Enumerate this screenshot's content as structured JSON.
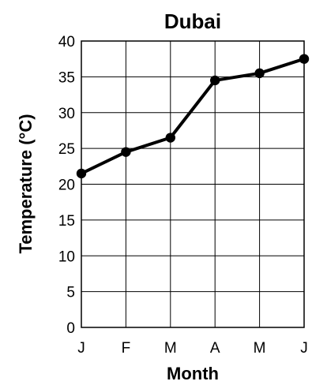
{
  "chart_data": {
    "type": "line",
    "title": "Dubai",
    "xlabel": "Month",
    "ylabel": "Temperature (°C)",
    "categories": [
      "J",
      "F",
      "M",
      "A",
      "M",
      "J"
    ],
    "y_ticks": [
      0,
      5,
      10,
      15,
      20,
      25,
      30,
      35,
      40
    ],
    "ylim": [
      0,
      40
    ],
    "grid": true,
    "series": [
      {
        "values": [
          21.5,
          24.5,
          26.5,
          34.5,
          35.5,
          37.5
        ]
      }
    ],
    "colors": {
      "line": "#000000",
      "grid": "#000000",
      "text": "#000000"
    }
  }
}
